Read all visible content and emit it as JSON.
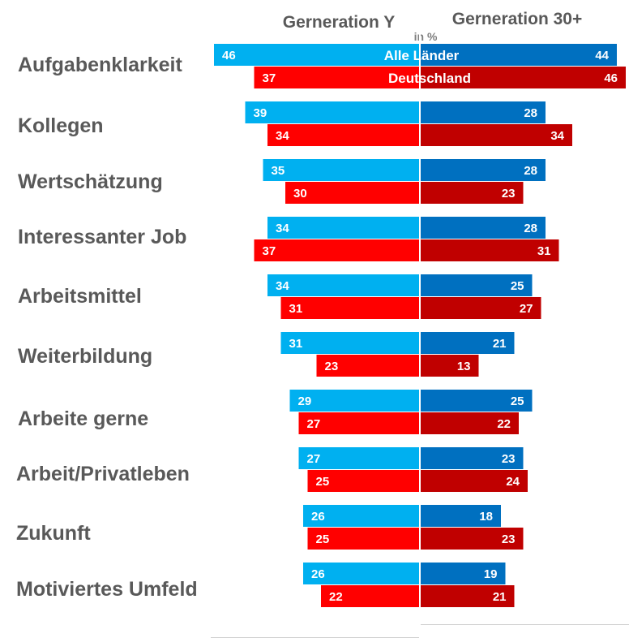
{
  "chart_data": {
    "type": "bar",
    "orientation": "horizontal-diverging",
    "unit_label": "in %",
    "panels": [
      {
        "title": "Gerneration Y",
        "side": "left"
      },
      {
        "title": "Gerneration 30+",
        "side": "right"
      }
    ],
    "legend": [
      "Alle Länder",
      "Deutschland"
    ],
    "categories": [
      "Aufgabenklarkeit",
      "Kollegen",
      "Wertschätzung",
      "Interessanter Job",
      "Arbeitsmittel",
      "Weiterbildung",
      "Arbeite gerne",
      "Arbeit/Privatleben",
      "Zukunft",
      "Motiviertes Umfeld"
    ],
    "series": [
      {
        "name": "Alle Länder",
        "panel": "Gerneration Y",
        "color": "#00b0f0",
        "values": [
          46,
          39,
          35,
          34,
          34,
          31,
          29,
          27,
          26,
          26
        ]
      },
      {
        "name": "Deutschland",
        "panel": "Gerneration Y",
        "color": "#ff0000",
        "values": [
          37,
          34,
          30,
          37,
          31,
          23,
          27,
          25,
          25,
          22
        ]
      },
      {
        "name": "Alle Länder",
        "panel": "Gerneration 30+",
        "color": "#0070c0",
        "values": [
          44,
          28,
          28,
          28,
          25,
          21,
          25,
          23,
          18,
          19
        ]
      },
      {
        "name": "Deutschland",
        "panel": "Gerneration 30+",
        "color": "#c00000",
        "values": [
          46,
          34,
          23,
          31,
          27,
          13,
          22,
          24,
          23,
          21
        ]
      }
    ],
    "xlim": [
      0,
      46
    ]
  }
}
